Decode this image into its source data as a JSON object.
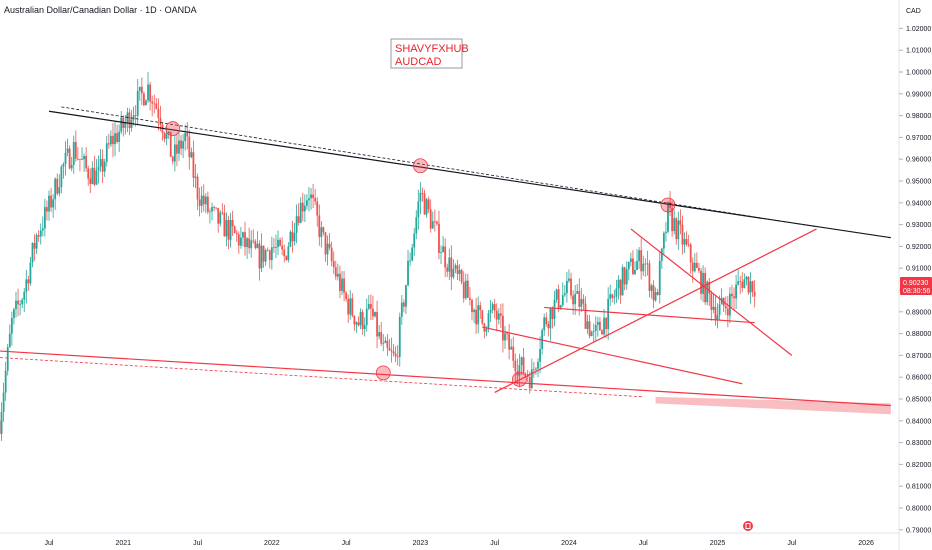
{
  "header": {
    "title": "Australian Dollar/Canadian Dollar · 1D · OANDA"
  },
  "axis": {
    "currency": "CAD"
  },
  "price_tag": {
    "value": "0.90230",
    "countdown": "08:30:56"
  },
  "note": {
    "line1": "SHAVYFXHUB",
    "line2": "AUDCAD"
  },
  "colors": {
    "up": "#26a69a",
    "down": "#ef5350",
    "trend_black": "#131722",
    "trend_red": "#f23645",
    "zone": "#f7a8ae",
    "tag_bg": "#f23645"
  },
  "chart_data": {
    "type": "candlestick",
    "title": "Australian Dollar/Canadian Dollar · 1D · OANDA",
    "ylabel": "CAD",
    "ylim": [
      0.785,
      1.03
    ],
    "y_ticks": [
      "1.02000",
      "1.01000",
      "1.00000",
      "0.99000",
      "0.98000",
      "0.97000",
      "0.96000",
      "0.95000",
      "0.94000",
      "0.93000",
      "0.92000",
      "0.91000",
      "0.90000",
      "0.89000",
      "0.88000",
      "0.87000",
      "0.86000",
      "0.85000",
      "0.84000",
      "0.83000",
      "0.82000",
      "0.81000",
      "0.80000",
      "0.79000"
    ],
    "x_ticks": [
      "Jul",
      "2021",
      "Jul",
      "2022",
      "Jul",
      "2023",
      "Jul",
      "2024",
      "Jul",
      "2025",
      "Jul",
      "2026"
    ],
    "x_tick_dates": [
      "2020-07",
      "2021-01",
      "2021-07",
      "2022-01",
      "2022-07",
      "2023-01",
      "2023-07",
      "2024-01",
      "2024-07",
      "2025-01",
      "2025-07",
      "2026-01"
    ],
    "close_path": [
      {
        "date": "2020-03",
        "value": 0.84
      },
      {
        "date": "2020-04",
        "value": 0.885
      },
      {
        "date": "2020-05",
        "value": 0.9
      },
      {
        "date": "2020-06",
        "value": 0.925
      },
      {
        "date": "2020-07",
        "value": 0.938
      },
      {
        "date": "2020-08",
        "value": 0.955
      },
      {
        "date": "2020-09",
        "value": 0.965
      },
      {
        "date": "2020-10",
        "value": 0.955
      },
      {
        "date": "2020-11",
        "value": 0.952
      },
      {
        "date": "2020-12",
        "value": 0.968
      },
      {
        "date": "2021-01",
        "value": 0.975
      },
      {
        "date": "2021-02",
        "value": 0.985
      },
      {
        "date": "2021-03",
        "value": 0.993
      },
      {
        "date": "2021-04",
        "value": 0.98
      },
      {
        "date": "2021-05",
        "value": 0.96
      },
      {
        "date": "2021-06",
        "value": 0.97
      },
      {
        "date": "2021-07",
        "value": 0.945
      },
      {
        "date": "2021-08",
        "value": 0.935
      },
      {
        "date": "2021-09",
        "value": 0.93
      },
      {
        "date": "2021-10",
        "value": 0.925
      },
      {
        "date": "2021-11",
        "value": 0.92
      },
      {
        "date": "2021-12",
        "value": 0.915
      },
      {
        "date": "2022-01",
        "value": 0.92
      },
      {
        "date": "2022-02",
        "value": 0.915
      },
      {
        "date": "2022-03",
        "value": 0.935
      },
      {
        "date": "2022-04",
        "value": 0.945
      },
      {
        "date": "2022-05",
        "value": 0.925
      },
      {
        "date": "2022-06",
        "value": 0.91
      },
      {
        "date": "2022-07",
        "value": 0.895
      },
      {
        "date": "2022-08",
        "value": 0.885
      },
      {
        "date": "2022-09",
        "value": 0.89
      },
      {
        "date": "2022-10",
        "value": 0.872
      },
      {
        "date": "2022-11",
        "value": 0.868
      },
      {
        "date": "2022-12",
        "value": 0.91
      },
      {
        "date": "2023-01",
        "value": 0.945
      },
      {
        "date": "2023-02",
        "value": 0.93
      },
      {
        "date": "2023-03",
        "value": 0.915
      },
      {
        "date": "2023-04",
        "value": 0.905
      },
      {
        "date": "2023-05",
        "value": 0.895
      },
      {
        "date": "2023-06",
        "value": 0.885
      },
      {
        "date": "2023-07",
        "value": 0.89
      },
      {
        "date": "2023-08",
        "value": 0.875
      },
      {
        "date": "2023-09",
        "value": 0.865
      },
      {
        "date": "2023-10",
        "value": 0.86
      },
      {
        "date": "2023-11",
        "value": 0.885
      },
      {
        "date": "2023-12",
        "value": 0.895
      },
      {
        "date": "2024-01",
        "value": 0.9
      },
      {
        "date": "2024-02",
        "value": 0.893
      },
      {
        "date": "2024-03",
        "value": 0.878
      },
      {
        "date": "2024-04",
        "value": 0.888
      },
      {
        "date": "2024-05",
        "value": 0.902
      },
      {
        "date": "2024-06",
        "value": 0.91
      },
      {
        "date": "2024-07",
        "value": 0.915
      },
      {
        "date": "2024-08",
        "value": 0.895
      },
      {
        "date": "2024-09",
        "value": 0.935
      },
      {
        "date": "2024-10",
        "value": 0.925
      },
      {
        "date": "2024-11",
        "value": 0.912
      },
      {
        "date": "2024-12",
        "value": 0.9
      },
      {
        "date": "2025-01",
        "value": 0.89
      },
      {
        "date": "2025-02",
        "value": 0.895
      },
      {
        "date": "2025-03",
        "value": 0.905
      },
      {
        "date": "2025-04",
        "value": 0.9023
      }
    ],
    "trendlines": [
      {
        "color": "black",
        "style": "solid",
        "from": {
          "date": "2020-07",
          "value": 0.982
        },
        "to": {
          "date": "2026-03",
          "value": 0.924
        }
      },
      {
        "color": "black",
        "style": "dashed",
        "from": {
          "date": "2020-08",
          "value": 0.984
        },
        "to": {
          "date": "2025-09",
          "value": 0.929
        }
      },
      {
        "color": "red",
        "style": "solid",
        "from": {
          "date": "2020-03",
          "value": 0.872
        },
        "to": {
          "date": "2026-03",
          "value": 0.847
        }
      },
      {
        "color": "red",
        "style": "dashed",
        "from": {
          "date": "2020-03",
          "value": 0.869
        },
        "to": {
          "date": "2024-07",
          "value": 0.851
        }
      },
      {
        "color": "red",
        "style": "solid",
        "from": {
          "date": "2023-07",
          "value": 0.853
        },
        "to": {
          "date": "2025-09",
          "value": 0.928
        }
      },
      {
        "color": "red",
        "style": "solid",
        "from": {
          "date": "2023-06",
          "value": 0.883
        },
        "to": {
          "date": "2025-03",
          "value": 0.857
        }
      },
      {
        "color": "red",
        "style": "solid",
        "from": {
          "date": "2023-11",
          "value": 0.892
        },
        "to": {
          "date": "2025-04",
          "value": 0.885
        }
      },
      {
        "color": "red",
        "style": "solid",
        "from": {
          "date": "2024-06",
          "value": 0.928
        },
        "to": {
          "date": "2025-07",
          "value": 0.87
        }
      }
    ],
    "zone": {
      "from": {
        "date": "2024-08",
        "value_top": 0.851,
        "value_bottom": 0.848
      },
      "to": {
        "date": "2026-03",
        "value_top": 0.848,
        "value_bottom": 0.843
      }
    },
    "circles": [
      {
        "date": "2021-05",
        "value": 0.974
      },
      {
        "date": "2023-01",
        "value": 0.957
      },
      {
        "date": "2022-10",
        "value": 0.862
      },
      {
        "date": "2023-09",
        "value": 0.859
      },
      {
        "date": "2024-09",
        "value": 0.939
      }
    ],
    "last_price": 0.9023
  }
}
